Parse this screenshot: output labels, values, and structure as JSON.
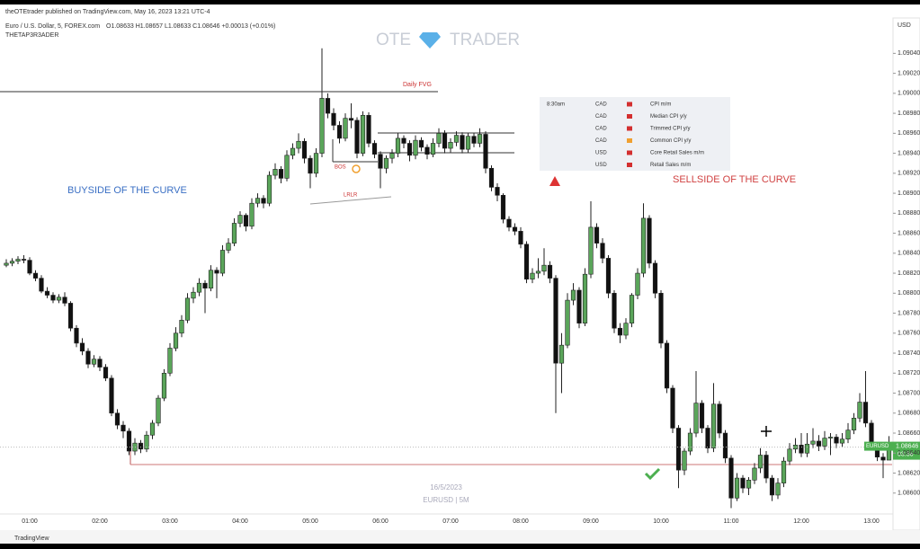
{
  "chart_data": {
    "type": "candlestick",
    "title": "Euro / U.S. Dollar, 5, FOREX.com",
    "publisher": "theOTEtrader published on TradingView.com, May 16, 2023 13:21 UTC-4",
    "ohlc_text": "O1.08633 H1.08657 L1.08633 C1.08646 +0.00013 (+0.01%)",
    "indicator": "THETAP3R3ADER",
    "currency": "USD",
    "watermark": {
      "left": "OTE",
      "right": "TRADER",
      "date": "16/5/2023",
      "symbol": "EURUSD | 5M"
    },
    "footer": "TradingView",
    "annotations": {
      "fvg": "Daily FVG",
      "buyside": "BUYSIDE OF THE CURVE",
      "sellside": "SELLSIDE OF THE CURVE",
      "bos": "BOS",
      "lrlr": "LRLR"
    },
    "price_label": {
      "symbol": "EURUSD",
      "price": "1.08646",
      "countdown": "03:36"
    },
    "calendar": [
      {
        "time": "8:30am",
        "currency": "CAD",
        "event": "CPI m/m",
        "color": "#d32f2f"
      },
      {
        "time": null,
        "currency": "CAD",
        "event": "Median CPI y/y",
        "color": "#d32f2f"
      },
      {
        "time": null,
        "currency": "CAD",
        "event": "Trimmed CPI y/y",
        "color": "#d32f2f"
      },
      {
        "time": null,
        "currency": "CAD",
        "event": "Common CPI y/y",
        "color": "#f0a030"
      },
      {
        "time": null,
        "currency": "USD",
        "event": "Core Retail Sales m/m",
        "color": "#d32f2f"
      },
      {
        "time": null,
        "currency": "USD",
        "event": "Retail Sales m/m",
        "color": "#d32f2f"
      }
    ],
    "up_color": "#5aa55a",
    "down_color": "#111111",
    "x": [
      "00:40",
      "00:45",
      "00:50",
      "00:55",
      "01:00",
      "01:05",
      "01:10",
      "01:15",
      "01:20",
      "01:25",
      "01:30",
      "01:35",
      "01:40",
      "01:45",
      "01:50",
      "01:55",
      "02:00",
      "02:05",
      "02:10",
      "02:15",
      "02:20",
      "02:25",
      "02:30",
      "02:35",
      "02:40",
      "02:45",
      "02:50",
      "02:55",
      "03:00",
      "03:05",
      "03:10",
      "03:15",
      "03:20",
      "03:25",
      "03:30",
      "03:35",
      "03:40",
      "03:45",
      "03:50",
      "03:55",
      "04:00",
      "04:05",
      "04:10",
      "04:15",
      "04:20",
      "04:25",
      "04:30",
      "04:35",
      "04:40",
      "04:45",
      "04:50",
      "04:55",
      "05:00",
      "05:05",
      "05:10",
      "05:15",
      "05:20",
      "05:25",
      "05:30",
      "05:35",
      "05:40",
      "05:45",
      "05:50",
      "05:55",
      "06:00",
      "06:05",
      "06:10",
      "06:15",
      "06:20",
      "06:25",
      "06:30",
      "06:35",
      "06:40",
      "06:45",
      "06:50",
      "06:55",
      "07:00",
      "07:05",
      "07:10",
      "07:15",
      "07:20",
      "07:25",
      "07:30",
      "07:35",
      "07:40",
      "07:45",
      "07:50",
      "07:55",
      "08:00",
      "08:05",
      "08:10",
      "08:15",
      "08:20",
      "08:25",
      "08:30",
      "08:35",
      "08:40",
      "08:45",
      "08:50",
      "08:55",
      "09:00",
      "09:05",
      "09:10",
      "09:15",
      "09:20",
      "09:25",
      "09:30",
      "09:35",
      "09:40",
      "09:45",
      "09:50",
      "09:55",
      "10:00",
      "10:05",
      "10:10",
      "10:15",
      "10:20",
      "10:25",
      "10:30",
      "10:35",
      "10:40",
      "10:45",
      "10:50",
      "10:55",
      "11:00",
      "11:05",
      "11:10",
      "11:15",
      "11:20",
      "11:25",
      "11:30",
      "11:35",
      "11:40",
      "11:45",
      "11:50",
      "11:55",
      "12:00",
      "12:05",
      "12:10",
      "12:15",
      "12:20",
      "12:25",
      "12:30",
      "12:35",
      "12:40",
      "12:45",
      "12:50",
      "12:55",
      "13:00",
      "13:05",
      "13:10",
      "13:15"
    ],
    "ohlc": [
      [
        1.08828,
        1.08834,
        1.08826,
        1.0883
      ],
      [
        1.0883,
        1.08835,
        1.08827,
        1.08832
      ],
      [
        1.08832,
        1.08837,
        1.08829,
        1.08834
      ],
      [
        1.08834,
        1.08838,
        1.0883,
        1.08833
      ],
      [
        1.08833,
        1.08836,
        1.08818,
        1.0882
      ],
      [
        1.0882,
        1.08823,
        1.08812,
        1.08815
      ],
      [
        1.08815,
        1.08818,
        1.088,
        1.08802
      ],
      [
        1.08802,
        1.08806,
        1.08795,
        1.08798
      ],
      [
        1.08798,
        1.08801,
        1.0879,
        1.08793
      ],
      [
        1.08793,
        1.08799,
        1.0879,
        1.08796
      ],
      [
        1.08796,
        1.08801,
        1.08787,
        1.0879
      ],
      [
        1.0879,
        1.08792,
        1.08762,
        1.08765
      ],
      [
        1.08765,
        1.08768,
        1.08746,
        1.0875
      ],
      [
        1.0875,
        1.08755,
        1.08738,
        1.08742
      ],
      [
        1.08742,
        1.08745,
        1.08725,
        1.08729
      ],
      [
        1.08729,
        1.08738,
        1.08726,
        1.08734
      ],
      [
        1.08734,
        1.08737,
        1.08722,
        1.08726
      ],
      [
        1.08726,
        1.08729,
        1.08712,
        1.08715
      ],
      [
        1.08715,
        1.08718,
        1.08677,
        1.0868
      ],
      [
        1.0868,
        1.08684,
        1.08664,
        1.08668
      ],
      [
        1.08668,
        1.08672,
        1.08655,
        1.08662
      ],
      [
        1.08662,
        1.08665,
        1.08638,
        1.08642
      ],
      [
        1.08642,
        1.08655,
        1.08638,
        1.0865
      ],
      [
        1.0865,
        1.08653,
        1.0864,
        1.08644
      ],
      [
        1.08644,
        1.08662,
        1.08641,
        1.08658
      ],
      [
        1.08658,
        1.08673,
        1.08654,
        1.0867
      ],
      [
        1.0867,
        1.08698,
        1.08667,
        1.08695
      ],
      [
        1.08695,
        1.08724,
        1.08692,
        1.0872
      ],
      [
        1.0872,
        1.0875,
        1.08717,
        1.08745
      ],
      [
        1.08745,
        1.08766,
        1.08742,
        1.0876
      ],
      [
        1.0876,
        1.08778,
        1.08756,
        1.08773
      ],
      [
        1.08773,
        1.088,
        1.0877,
        1.08795
      ],
      [
        1.08795,
        1.08806,
        1.0879,
        1.08801
      ],
      [
        1.08801,
        1.08815,
        1.08797,
        1.0881
      ],
      [
        1.0881,
        1.08813,
        1.0878,
        1.08805
      ],
      [
        1.08805,
        1.08828,
        1.08802,
        1.08823
      ],
      [
        1.08823,
        1.08826,
        1.08795,
        1.0882
      ],
      [
        1.0882,
        1.08848,
        1.08817,
        1.08843
      ],
      [
        1.08843,
        1.08855,
        1.0884,
        1.0885
      ],
      [
        1.0885,
        1.08875,
        1.08847,
        1.0887
      ],
      [
        1.0887,
        1.08882,
        1.08866,
        1.08878
      ],
      [
        1.08878,
        1.0888,
        1.08862,
        1.08867
      ],
      [
        1.08867,
        1.08895,
        1.08864,
        1.0889
      ],
      [
        1.0889,
        1.089,
        1.08886,
        1.08895
      ],
      [
        1.08895,
        1.08898,
        1.08885,
        1.0889
      ],
      [
        1.0889,
        1.08922,
        1.08887,
        1.08918
      ],
      [
        1.08918,
        1.0893,
        1.08914,
        1.08924
      ],
      [
        1.08924,
        1.08927,
        1.0891,
        1.08915
      ],
      [
        1.08915,
        1.08943,
        1.08912,
        1.08938
      ],
      [
        1.08938,
        1.0895,
        1.08934,
        1.08945
      ],
      [
        1.08945,
        1.0896,
        1.0894,
        1.08952
      ],
      [
        1.08952,
        1.08955,
        1.0893,
        1.08935
      ],
      [
        1.08935,
        1.08938,
        1.08905,
        1.0892
      ],
      [
        1.0892,
        1.08945,
        1.08916,
        1.0894
      ],
      [
        1.0894,
        1.09045,
        1.08936,
        1.08995
      ],
      [
        1.08995,
        1.09,
        1.08975,
        1.0898
      ],
      [
        1.0898,
        1.08985,
        1.08963,
        1.08968
      ],
      [
        1.08968,
        1.08972,
        1.0895,
        1.08955
      ],
      [
        1.08955,
        1.0898,
        1.08952,
        1.08975
      ],
      [
        1.08975,
        1.0899,
        1.08965,
        1.08973
      ],
      [
        1.08973,
        1.08976,
        1.08935,
        1.0894
      ],
      [
        1.0894,
        1.08982,
        1.08937,
        1.08978
      ],
      [
        1.08978,
        1.08981,
        1.08946,
        1.0895
      ],
      [
        1.0895,
        1.08953,
        1.08935,
        1.08939
      ],
      [
        1.08939,
        1.08942,
        1.08905,
        1.08925
      ],
      [
        1.08925,
        1.08938,
        1.0892,
        1.08935
      ],
      [
        1.08935,
        1.08944,
        1.0893,
        1.0894
      ],
      [
        1.0894,
        1.0896,
        1.08936,
        1.08955
      ],
      [
        1.08955,
        1.08958,
        1.08945,
        1.0895
      ],
      [
        1.0895,
        1.08953,
        1.08932,
        1.08938
      ],
      [
        1.08938,
        1.08958,
        1.08934,
        1.08953
      ],
      [
        1.08953,
        1.08956,
        1.08942,
        1.08946
      ],
      [
        1.08946,
        1.08949,
        1.08934,
        1.08939
      ],
      [
        1.08939,
        1.08955,
        1.08936,
        1.0895
      ],
      [
        1.0895,
        1.08965,
        1.08946,
        1.0896
      ],
      [
        1.0896,
        1.08963,
        1.0894,
        1.08945
      ],
      [
        1.08945,
        1.08955,
        1.08941,
        1.08951
      ],
      [
        1.08951,
        1.08962,
        1.08947,
        1.08958
      ],
      [
        1.08958,
        1.08961,
        1.0894,
        1.08944
      ],
      [
        1.08944,
        1.0896,
        1.08941,
        1.08957
      ],
      [
        1.08957,
        1.0896,
        1.08946,
        1.0895
      ],
      [
        1.0895,
        1.08965,
        1.08946,
        1.08959
      ],
      [
        1.08959,
        1.08962,
        1.0892,
        1.08925
      ],
      [
        1.08925,
        1.08928,
        1.08902,
        1.08906
      ],
      [
        1.08906,
        1.0891,
        1.08892,
        1.08898
      ],
      [
        1.08898,
        1.089,
        1.0887,
        1.08874
      ],
      [
        1.08874,
        1.08877,
        1.08862,
        1.08866
      ],
      [
        1.08866,
        1.0887,
        1.08858,
        1.08862
      ],
      [
        1.08862,
        1.08866,
        1.08845,
        1.08849
      ],
      [
        1.08849,
        1.08852,
        1.0881,
        1.08814
      ],
      [
        1.08814,
        1.08825,
        1.0881,
        1.0882
      ],
      [
        1.0882,
        1.08835,
        1.08815,
        1.08822
      ],
      [
        1.08822,
        1.08845,
        1.08818,
        1.08828
      ],
      [
        1.08828,
        1.08832,
        1.0881,
        1.08815
      ],
      [
        1.08815,
        1.08818,
        1.0868,
        1.0873
      ],
      [
        1.0873,
        1.0876,
        1.087,
        1.08748
      ],
      [
        1.08748,
        1.088,
        1.08745,
        1.08793
      ],
      [
        1.08793,
        1.0881,
        1.08788,
        1.08803
      ],
      [
        1.08803,
        1.08806,
        1.08765,
        1.0877
      ],
      [
        1.0877,
        1.08825,
        1.08767,
        1.08819
      ],
      [
        1.08819,
        1.08892,
        1.08815,
        1.08866
      ],
      [
        1.08866,
        1.0887,
        1.08845,
        1.0885
      ],
      [
        1.0885,
        1.08855,
        1.0883,
        1.08835
      ],
      [
        1.08835,
        1.08838,
        1.08795,
        1.088
      ],
      [
        1.088,
        1.08803,
        1.0876,
        1.08765
      ],
      [
        1.08765,
        1.0877,
        1.0875,
        1.08758
      ],
      [
        1.08758,
        1.08775,
        1.08754,
        1.0877
      ],
      [
        1.0877,
        1.088,
        1.08766,
        1.08798
      ],
      [
        1.08798,
        1.08825,
        1.08794,
        1.0882
      ],
      [
        1.0882,
        1.0889,
        1.08816,
        1.08875
      ],
      [
        1.08875,
        1.08878,
        1.08825,
        1.0883
      ],
      [
        1.0883,
        1.08833,
        1.08795,
        1.088
      ],
      [
        1.088,
        1.08803,
        1.08745,
        1.0875
      ],
      [
        1.0875,
        1.08753,
        1.087,
        1.08705
      ],
      [
        1.08705,
        1.08708,
        1.0866,
        1.08665
      ],
      [
        1.08665,
        1.08668,
        1.08605,
        1.08623
      ],
      [
        1.08623,
        1.08645,
        1.08618,
        1.08642
      ],
      [
        1.08642,
        1.08665,
        1.08638,
        1.0866
      ],
      [
        1.0866,
        1.08722,
        1.08656,
        1.0869
      ],
      [
        1.0869,
        1.08693,
        1.0866,
        1.08665
      ],
      [
        1.08665,
        1.08668,
        1.0864,
        1.08645
      ],
      [
        1.08645,
        1.0871,
        1.08641,
        1.08689
      ],
      [
        1.08689,
        1.08692,
        1.08655,
        1.0866
      ],
      [
        1.0866,
        1.08663,
        1.0863,
        1.08635
      ],
      [
        1.08635,
        1.08638,
        1.08585,
        1.08595
      ],
      [
        1.08595,
        1.0862,
        1.08592,
        1.08615
      ],
      [
        1.08615,
        1.08618,
        1.086,
        1.08605
      ],
      [
        1.08605,
        1.08616,
        1.08598,
        1.08613
      ],
      [
        1.08613,
        1.0863,
        1.08609,
        1.08625
      ],
      [
        1.08625,
        1.08645,
        1.0862,
        1.08638
      ],
      [
        1.08638,
        1.08642,
        1.0861,
        1.08615
      ],
      [
        1.08615,
        1.08618,
        1.08592,
        1.08598
      ],
      [
        1.08598,
        1.08615,
        1.08594,
        1.0861
      ],
      [
        1.0861,
        1.08636,
        1.08606,
        1.08632
      ],
      [
        1.08632,
        1.0865,
        1.08628,
        1.08644
      ],
      [
        1.08644,
        1.08655,
        1.0864,
        1.08648
      ],
      [
        1.08648,
        1.0866,
        1.08636,
        1.0864
      ],
      [
        1.0864,
        1.0866,
        1.08636,
        1.08649
      ],
      [
        1.08649,
        1.08665,
        1.08645,
        1.08652
      ],
      [
        1.08652,
        1.08658,
        1.08642,
        1.08647
      ],
      [
        1.08647,
        1.08662,
        1.08643,
        1.08655
      ],
      [
        1.08655,
        1.0866,
        1.08638,
        1.08656
      ],
      [
        1.08656,
        1.08659,
        1.08645,
        1.0865
      ],
      [
        1.0865,
        1.0866,
        1.08646,
        1.08654
      ],
      [
        1.08654,
        1.0867,
        1.0865,
        1.08663
      ],
      [
        1.08663,
        1.0868,
        1.08659,
        1.08675
      ],
      [
        1.08675,
        1.087,
        1.08671,
        1.08691
      ],
      [
        1.08691,
        1.08722,
        1.08666,
        1.0867
      ],
      [
        1.0867,
        1.08673,
        1.08645,
        1.08648
      ],
      [
        1.08648,
        1.08651,
        1.08632,
        1.08636
      ],
      [
        1.08636,
        1.0864,
        1.08615,
        1.08633
      ],
      [
        1.08633,
        1.08657,
        1.08633,
        1.08646
      ]
    ],
    "ylim": [
      1.0858,
      1.0907
    ],
    "yticks": [
      {
        "value": 1.086,
        "label": "1.08600"
      },
      {
        "value": 1.0862,
        "label": "1.08620"
      },
      {
        "value": 1.0864,
        "label": "1.08640"
      },
      {
        "value": 1.0866,
        "label": "1.08660"
      },
      {
        "value": 1.0868,
        "label": "1.08680"
      },
      {
        "value": 1.087,
        "label": "1.08700"
      },
      {
        "value": 1.0872,
        "label": "1.08720"
      },
      {
        "value": 1.0874,
        "label": "1.08740"
      },
      {
        "value": 1.0876,
        "label": "1.08760"
      },
      {
        "value": 1.0878,
        "label": "1.08780"
      },
      {
        "value": 1.088,
        "label": "1.08800"
      },
      {
        "value": 1.0882,
        "label": "1.08820"
      },
      {
        "value": 1.0884,
        "label": "1.08840"
      },
      {
        "value": 1.0886,
        "label": "1.08860"
      },
      {
        "value": 1.0888,
        "label": "1.08880"
      },
      {
        "value": 1.089,
        "label": "1.08900"
      },
      {
        "value": 1.0892,
        "label": "1.08920"
      },
      {
        "value": 1.0894,
        "label": "1.08940"
      },
      {
        "value": 1.0896,
        "label": "1.08960"
      },
      {
        "value": 1.0898,
        "label": "1.08980"
      },
      {
        "value": 1.09,
        "label": "1.09000"
      },
      {
        "value": 1.0902,
        "label": "1.09020"
      },
      {
        "value": 1.0904,
        "label": "1.09040"
      }
    ],
    "xticks": [
      "01:00",
      "02:00",
      "03:00",
      "04:00",
      "05:00",
      "06:00",
      "07:00",
      "08:00",
      "09:00",
      "10:00",
      "11:00",
      "12:00",
      "13:00"
    ]
  }
}
